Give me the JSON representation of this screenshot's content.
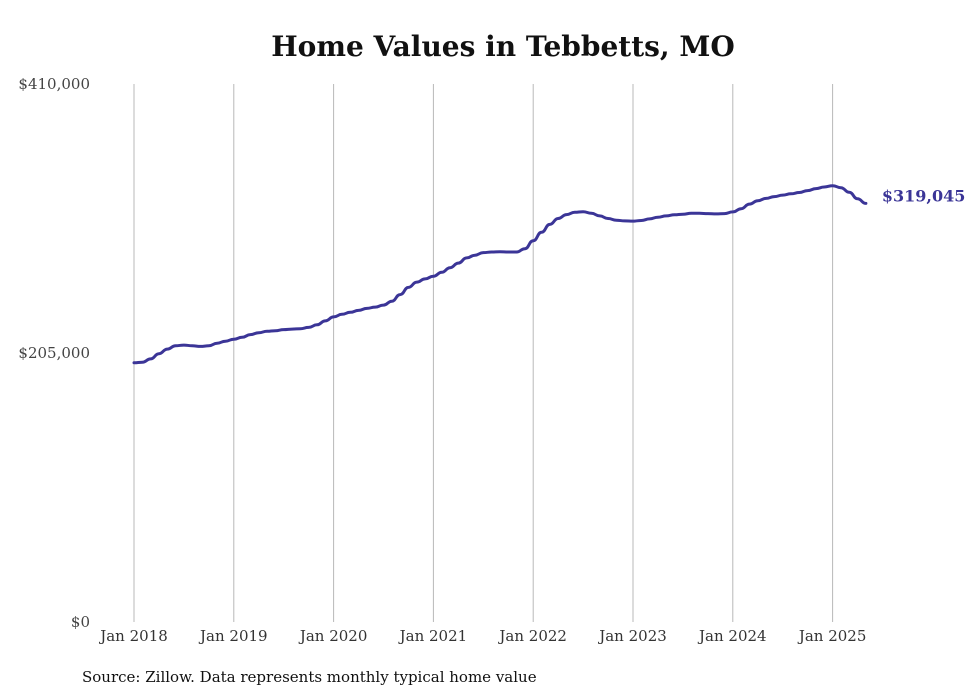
{
  "chart_data": {
    "type": "line",
    "title": "Home Values in Tebbetts, MO",
    "xlabel": "",
    "ylabel": "",
    "ylim": [
      0,
      410000
    ],
    "yticks": [
      0,
      205000,
      410000
    ],
    "ytick_labels": [
      "$0",
      "$205,000",
      "$410,000"
    ],
    "xtick_labels": [
      "Jan 2018",
      "Jan 2019",
      "Jan 2020",
      "Jan 2021",
      "Jan 2022",
      "Jan 2023",
      "Jan 2024",
      "Jan 2025"
    ],
    "xtick_dates": [
      "2018-01",
      "2019-01",
      "2020-01",
      "2021-01",
      "2022-01",
      "2023-01",
      "2024-01",
      "2025-01"
    ],
    "grid": "vertical",
    "line_color": "#3b3597",
    "end_label": "$319,045",
    "series": [
      {
        "x": [
          "2018-01",
          "2018-02",
          "2018-03",
          "2018-04",
          "2018-05",
          "2018-06",
          "2018-07",
          "2018-08",
          "2018-09",
          "2018-10",
          "2018-11",
          "2018-12",
          "2019-01",
          "2019-02",
          "2019-03",
          "2019-04",
          "2019-05",
          "2019-06",
          "2019-07",
          "2019-08",
          "2019-09",
          "2019-10",
          "2019-11",
          "2019-12",
          "2020-01",
          "2020-02",
          "2020-03",
          "2020-04",
          "2020-05",
          "2020-06",
          "2020-07",
          "2020-08",
          "2020-09",
          "2020-10",
          "2020-11",
          "2020-12",
          "2021-01",
          "2021-02",
          "2021-03",
          "2021-04",
          "2021-05",
          "2021-06",
          "2021-07",
          "2021-08",
          "2021-09",
          "2021-10",
          "2021-11",
          "2021-12",
          "2022-01",
          "2022-02",
          "2022-03",
          "2022-04",
          "2022-05",
          "2022-06",
          "2022-07",
          "2022-08",
          "2022-09",
          "2022-10",
          "2022-11",
          "2022-12",
          "2023-01",
          "2023-02",
          "2023-03",
          "2023-04",
          "2023-05",
          "2023-06",
          "2023-07",
          "2023-08",
          "2023-09",
          "2023-10",
          "2023-11",
          "2023-12",
          "2024-01",
          "2024-02",
          "2024-03",
          "2024-04",
          "2024-05",
          "2024-06",
          "2024-07",
          "2024-08",
          "2024-09",
          "2024-10",
          "2024-11",
          "2024-12",
          "2025-01",
          "2025-02",
          "2025-03",
          "2025-04",
          "2025-05"
        ],
        "values": [
          197500,
          198000,
          200500,
          204500,
          208000,
          210500,
          211000,
          210500,
          210000,
          210500,
          212500,
          214000,
          215500,
          217000,
          219000,
          220500,
          221500,
          222000,
          222800,
          223200,
          223500,
          224500,
          226500,
          229500,
          232500,
          234500,
          236000,
          237500,
          239000,
          240000,
          241500,
          244500,
          249500,
          255000,
          259000,
          261500,
          263500,
          266500,
          270000,
          273500,
          277500,
          279500,
          281500,
          282000,
          282200,
          282000,
          282000,
          284500,
          290500,
          297000,
          303000,
          307500,
          310500,
          312200,
          312700,
          311500,
          309500,
          307500,
          306200,
          305700,
          305500,
          306000,
          307200,
          308500,
          309500,
          310300,
          310800,
          311500,
          311500,
          311200,
          311000,
          311200,
          312500,
          315000,
          318500,
          321000,
          322800,
          324200,
          325300,
          326300,
          327300,
          328800,
          330300,
          331500,
          332500,
          331000,
          327500,
          322500,
          319045
        ]
      }
    ]
  },
  "footer": {
    "source": "Source: Zillow. Data represents monthly typical home value"
  }
}
